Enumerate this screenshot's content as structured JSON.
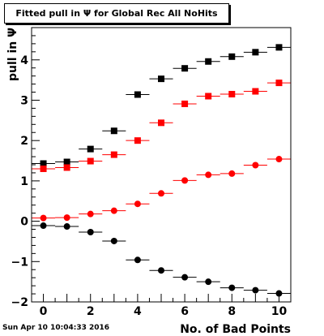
{
  "title": "Fitted pull in  Ψ  for Global Rec All NoHits",
  "timestamp": "Sun Apr 10 10:04:33 2016",
  "chart_data": {
    "type": "scatter",
    "xlabel": "No. of Bad Points",
    "ylabel": "pull in  Ψ",
    "xlim": [
      -0.5,
      10.5
    ],
    "ylim": [
      -2,
      4.8
    ],
    "x_ticks": [
      "0",
      "2",
      "4",
      "6",
      "8",
      "10"
    ],
    "y_ticks": [
      "−2",
      "−1",
      "0",
      "1",
      "2",
      "3",
      "4"
    ],
    "grid": false,
    "legend": "none",
    "x": [
      0,
      1,
      2,
      3,
      4,
      5,
      6,
      7,
      8,
      9,
      10
    ],
    "series": [
      {
        "marker": "square",
        "color": "#000000",
        "values": [
          1.43,
          1.47,
          1.79,
          2.24,
          3.14,
          3.53,
          3.79,
          3.96,
          4.08,
          4.19,
          4.31
        ]
      },
      {
        "marker": "square",
        "color": "#ff0000",
        "values": [
          1.3,
          1.33,
          1.49,
          1.65,
          2.0,
          2.44,
          2.91,
          3.1,
          3.15,
          3.22,
          3.43
        ]
      },
      {
        "marker": "circle",
        "color": "#ff0000",
        "values": [
          0.08,
          0.09,
          0.18,
          0.26,
          0.43,
          0.69,
          1.01,
          1.15,
          1.18,
          1.39,
          1.54
        ]
      },
      {
        "marker": "circle",
        "color": "#000000",
        "values": [
          -0.11,
          -0.13,
          -0.27,
          -0.49,
          -0.96,
          -1.22,
          -1.39,
          -1.5,
          -1.65,
          -1.71,
          -1.79
        ]
      }
    ]
  }
}
